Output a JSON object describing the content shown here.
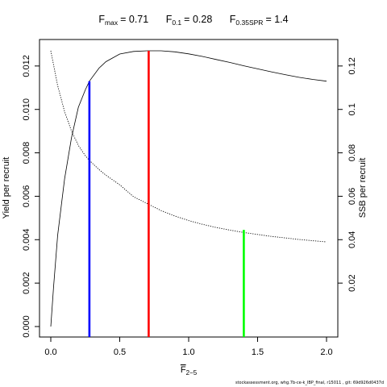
{
  "title": {
    "fmax": {
      "base": "F",
      "sub": "max",
      "value": "= 0.71"
    },
    "f01": {
      "base": "F",
      "sub": "0.1",
      "value": "= 0.28"
    },
    "fspr": {
      "base": "F",
      "sub": "0.35SPR",
      "value": "= 1.4"
    }
  },
  "footer": "stockassessment.org, whg.7b-ce-k_IBP_final, r15011 , git: 69d926d0437d",
  "chart_data": {
    "type": "line",
    "x_label": {
      "base": "F",
      "sub": "2−5"
    },
    "y_left_label": "Yield per recruit",
    "y_right_label": "SSB per recruit",
    "xlim": [
      0,
      2
    ],
    "ylim_left": [
      0,
      0.0127
    ],
    "ylim_right": [
      0,
      0.127
    ],
    "x_ticks": [
      "0.0",
      "0.5",
      "1.0",
      "1.5",
      "2.0"
    ],
    "y_left_ticks": [
      "0.000",
      "0.002",
      "0.004",
      "0.006",
      "0.008",
      "0.010",
      "0.012"
    ],
    "y_right_ticks": [
      "0.02",
      "0.04",
      "0.06",
      "0.08",
      "0.1",
      "0.12"
    ],
    "series": [
      {
        "axis": "left",
        "style": "solid",
        "x": [
          0,
          0.02,
          0.05,
          0.1,
          0.15,
          0.2,
          0.25,
          0.28,
          0.35,
          0.4,
          0.5,
          0.6,
          0.7,
          0.8,
          0.9,
          1.0,
          1.1,
          1.2,
          1.3,
          1.4,
          1.5,
          1.6,
          1.7,
          1.8,
          1.9,
          2.0
        ],
        "y": [
          0,
          0.0018,
          0.0042,
          0.0068,
          0.0087,
          0.0101,
          0.0109,
          0.0113,
          0.0119,
          0.0122,
          0.01255,
          0.01267,
          0.0127,
          0.0127,
          0.01265,
          0.01256,
          0.01244,
          0.0123,
          0.01216,
          0.01201,
          0.01187,
          0.01173,
          0.0116,
          0.01148,
          0.01138,
          0.0113
        ]
      },
      {
        "axis": "right",
        "style": "dotted",
        "x": [
          0,
          0.05,
          0.1,
          0.15,
          0.2,
          0.25,
          0.28,
          0.35,
          0.4,
          0.5,
          0.6,
          0.71,
          0.8,
          0.9,
          1.0,
          1.1,
          1.2,
          1.3,
          1.4,
          1.5,
          1.6,
          1.7,
          1.8,
          1.9,
          2.0
        ],
        "y": [
          0.127,
          0.111,
          0.099,
          0.09,
          0.0834,
          0.0787,
          0.0765,
          0.0723,
          0.0697,
          0.0653,
          0.0598,
          0.0563,
          0.0534,
          0.0509,
          0.0488,
          0.0471,
          0.0456,
          0.0444,
          0.0433,
          0.0424,
          0.0415,
          0.0408,
          0.0401,
          0.0395,
          0.039
        ]
      }
    ],
    "reference_lines": [
      {
        "name": "F0.1",
        "x": 0.28,
        "y": 0.0113,
        "color": "#0000ff"
      },
      {
        "name": "Fmax",
        "x": 0.71,
        "y": 0.0127,
        "color": "#ff0000"
      },
      {
        "name": "F0.35SPR",
        "x": 1.4,
        "y": 0.00445,
        "color": "#00ff00"
      }
    ]
  }
}
